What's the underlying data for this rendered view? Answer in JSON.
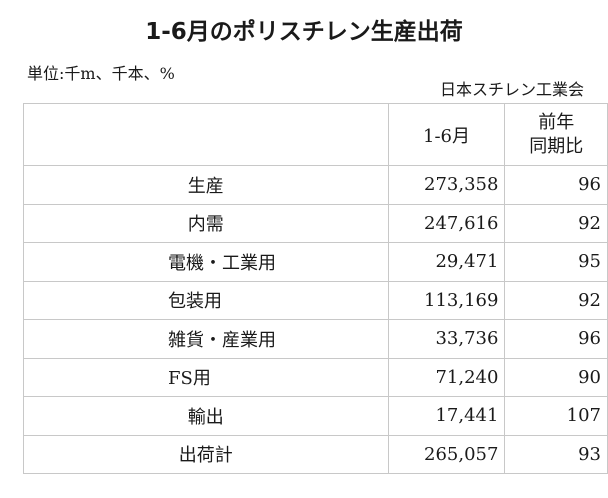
{
  "title": "1-6月のポリスチレン生産出荷",
  "unit": "単位:千m、千本、%",
  "source": "日本スチレン工業会",
  "table": {
    "headers": [
      "",
      "1-6月",
      "前年",
      "同期比"
    ],
    "rows": [
      {
        "label": "生産",
        "value": "273,358",
        "yoy": "96"
      },
      {
        "label": "内需",
        "value": "247,616",
        "yoy": "92"
      },
      {
        "label": "電機・工業用",
        "value": "29,471",
        "yoy": "95"
      },
      {
        "label": "包装用",
        "value": "113,169",
        "yoy": "92"
      },
      {
        "label": "雑貨・産業用",
        "value": "33,736",
        "yoy": "96"
      },
      {
        "label": "FS用",
        "value": "71,240",
        "yoy": "90"
      },
      {
        "label": "輸出",
        "value": "17,441",
        "yoy": "107"
      },
      {
        "label": "出荷計",
        "value": "265,057",
        "yoy": "93"
      }
    ]
  }
}
